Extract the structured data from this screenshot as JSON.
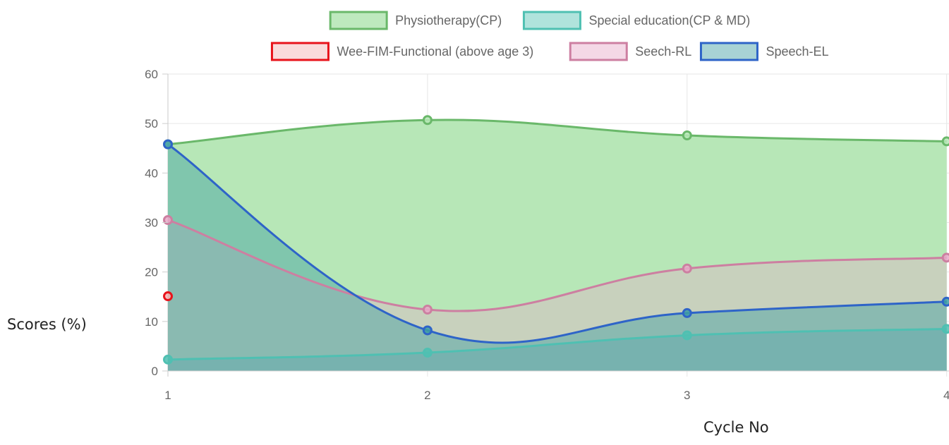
{
  "chart_data": {
    "type": "area",
    "x": [
      1,
      2,
      3,
      4
    ],
    "xlabel": "Cycle No",
    "ylabel": "Scores (%)",
    "ylim": [
      0,
      60
    ],
    "yticks": [
      0,
      10,
      20,
      30,
      40,
      50,
      60
    ],
    "grid": true,
    "legend_position": "top-center",
    "series": [
      {
        "name": "Physiotherapy(CP)",
        "values": [
          45.8,
          50.7,
          47.6,
          46.4
        ],
        "stroke": "#6ab86a",
        "fill": "#b7e7b7",
        "fill_opacity": 1.0
      },
      {
        "name": "Special education(CP & MD)",
        "values": [
          2.3,
          3.7,
          7.2,
          8.5
        ],
        "stroke": "#4fc0b2",
        "fill": "#4fc0b2",
        "fill_opacity": 0.5
      },
      {
        "name": "Wee-FIM-Functional (above age 3)",
        "values": [
          15.1,
          null,
          null,
          null
        ],
        "stroke": "#e8131b",
        "fill": "#f4b0b0",
        "fill_opacity": 0.55
      },
      {
        "name": "Seech-RL",
        "values": [
          30.5,
          12.4,
          20.7,
          22.9
        ],
        "stroke": "#cd7fa1",
        "fill": "#e7a8c8",
        "fill_opacity": 0.35
      },
      {
        "name": "Speech-EL",
        "values": [
          45.8,
          8.2,
          11.7,
          14.0
        ],
        "stroke": "#2e64c8",
        "fill": "#3d9ea2",
        "fill_opacity": 0.45
      }
    ]
  }
}
